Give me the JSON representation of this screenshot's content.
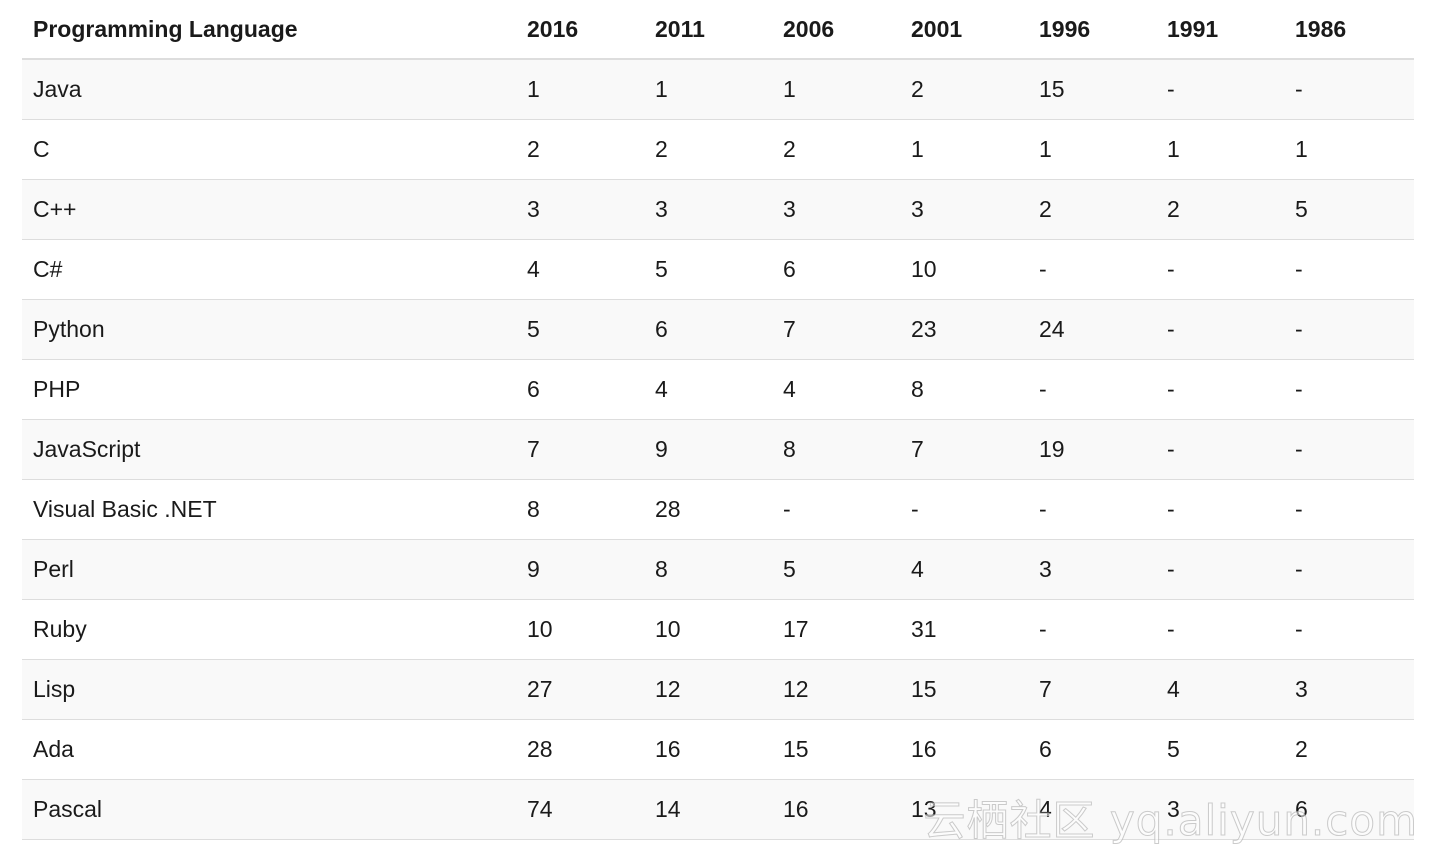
{
  "table": {
    "headers": [
      "Programming Language",
      "2016",
      "2011",
      "2006",
      "2001",
      "1996",
      "1991",
      "1986"
    ],
    "rows": [
      [
        "Java",
        "1",
        "1",
        "1",
        "2",
        "15",
        "-",
        "-"
      ],
      [
        "C",
        "2",
        "2",
        "2",
        "1",
        "1",
        "1",
        "1"
      ],
      [
        "C++",
        "3",
        "3",
        "3",
        "3",
        "2",
        "2",
        "5"
      ],
      [
        "C#",
        "4",
        "5",
        "6",
        "10",
        "-",
        "-",
        "-"
      ],
      [
        "Python",
        "5",
        "6",
        "7",
        "23",
        "24",
        "-",
        "-"
      ],
      [
        "PHP",
        "6",
        "4",
        "4",
        "8",
        "-",
        "-",
        "-"
      ],
      [
        "JavaScript",
        "7",
        "9",
        "8",
        "7",
        "19",
        "-",
        "-"
      ],
      [
        "Visual Basic .NET",
        "8",
        "28",
        "-",
        "-",
        "-",
        "-",
        "-"
      ],
      [
        "Perl",
        "9",
        "8",
        "5",
        "4",
        "3",
        "-",
        "-"
      ],
      [
        "Ruby",
        "10",
        "10",
        "17",
        "31",
        "-",
        "-",
        "-"
      ],
      [
        "Lisp",
        "27",
        "12",
        "12",
        "15",
        "7",
        "4",
        "3"
      ],
      [
        "Ada",
        "28",
        "16",
        "15",
        "16",
        "6",
        "5",
        "2"
      ],
      [
        "Pascal",
        "74",
        "14",
        "16",
        "13",
        "4",
        "3",
        "6"
      ]
    ]
  },
  "watermark": "云栖社区 yq.aliyun.com"
}
